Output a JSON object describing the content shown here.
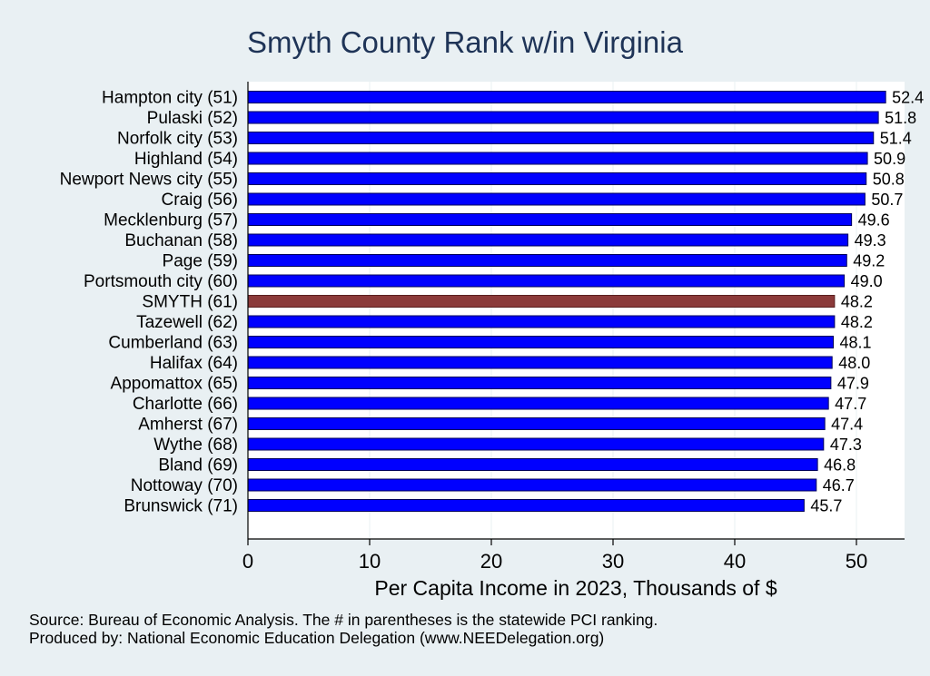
{
  "chart_data": {
    "type": "bar",
    "orientation": "horizontal",
    "title": "Smyth County Rank w/in Virginia",
    "xlabel": "Per Capita Income in 2023, Thousands of $",
    "ylabel": "",
    "xlim": [
      0,
      54.3
    ],
    "xticks": [
      0,
      10,
      20,
      30,
      40,
      50
    ],
    "categories": [
      "Hampton city (51)",
      "Pulaski (52)",
      "Norfolk city (53)",
      "Highland (54)",
      "Newport News city (55)",
      "Craig (56)",
      "Mecklenburg (57)",
      "Buchanan (58)",
      "Page (59)",
      "Portsmouth city (60)",
      "SMYTH (61)",
      "Tazewell (62)",
      "Cumberland (63)",
      "Halifax (64)",
      "Appomattox (65)",
      "Charlotte (66)",
      "Amherst (67)",
      "Wythe (68)",
      "Bland (69)",
      "Nottoway (70)",
      "Brunswick (71)"
    ],
    "values": [
      52.4,
      51.8,
      51.4,
      50.9,
      50.8,
      50.7,
      49.6,
      49.3,
      49.2,
      49.0,
      48.2,
      48.2,
      48.1,
      48.0,
      47.9,
      47.7,
      47.4,
      47.3,
      46.8,
      46.7,
      45.7
    ],
    "value_labels": [
      "52.4",
      "51.8",
      "51.4",
      "50.9",
      "50.8",
      "50.7",
      "49.6",
      "49.3",
      "49.2",
      "49.0",
      "48.2",
      "48.2",
      "48.1",
      "48.0",
      "47.9",
      "47.7",
      "47.4",
      "47.3",
      "46.8",
      "46.7",
      "45.7"
    ],
    "highlight_category": "SMYTH (61)",
    "colors": {
      "bar": "#0000ff",
      "highlight": "#8b3a3a",
      "grid": "#ffffff",
      "background": "#e9f0f3",
      "plot_background": "#ffffff",
      "title": "#1f3457"
    },
    "grid": true,
    "legend": false
  },
  "footer": {
    "source": "Source: Bureau of Economic Analysis. The # in parentheses is the statewide PCI ranking.",
    "producer": "Produced by: National Economic Education Delegation (www.NEEDelegation.org)"
  }
}
